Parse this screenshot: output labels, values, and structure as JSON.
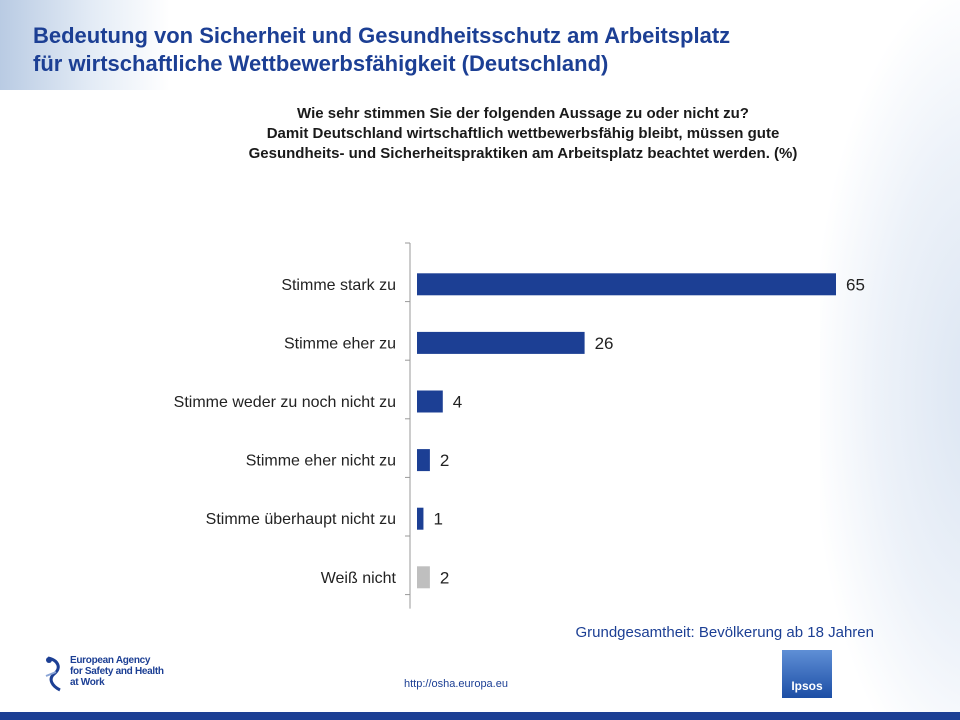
{
  "header": {
    "title_line1": "Bedeutung von Sicherheit und Gesundheitsschutz am Arbeitsplatz",
    "title_line2": "für wirtschaftliche Wettbewerbsfähigkeit (Deutschland)"
  },
  "question": {
    "line1": "Wie sehr stimmen Sie der folgenden Aussage zu oder nicht zu?",
    "line2": "Damit Deutschland wirtschaftlich wettbewerbsfähig bleibt, müssen gute",
    "line3": "Gesundheits- und Sicherheitspraktiken am Arbeitsplatz beachtet werden. (%)"
  },
  "chart_data": {
    "type": "bar",
    "orientation": "horizontal",
    "categories": [
      "Stimme stark zu",
      "Stimme eher zu",
      "Stimme weder zu noch nicht zu",
      "Stimme eher nicht zu",
      "Stimme überhaupt nicht zu",
      "Weiß nicht"
    ],
    "values": [
      65,
      26,
      4,
      2,
      1,
      2
    ],
    "data_labels": [
      "65",
      "26",
      "4",
      "2",
      "1",
      "2"
    ],
    "colors": [
      "#1c3f94",
      "#1c3f94",
      "#1c3f94",
      "#1c3f94",
      "#1c3f94",
      "#bfbfbf"
    ],
    "xlim": [
      0,
      65
    ],
    "grid": false,
    "legend": "none"
  },
  "base_text": "Grundgesamtheit: Bevölkerung ab 18 Jahren",
  "footer": {
    "logo_line1": "European Agency",
    "logo_line2": "for Safety and Health",
    "logo_line3": "at Work",
    "url": "http://osha.europa.eu",
    "ipsos": "Ipsos"
  }
}
